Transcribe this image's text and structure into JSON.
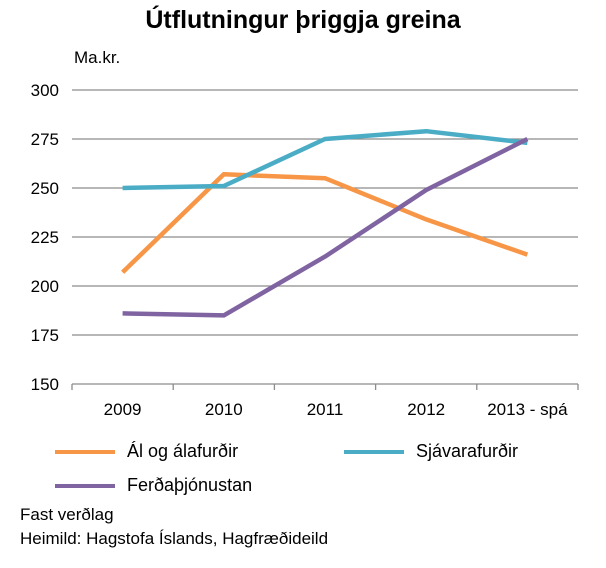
{
  "chart_data": {
    "type": "line",
    "title": "Útflutningur þriggja greina",
    "unit_label": "Ma.kr.",
    "categories": [
      "2009",
      "2010",
      "2011",
      "2012",
      "2013 - spá"
    ],
    "ylim": [
      150,
      300
    ],
    "yticks": [
      "150",
      "175",
      "200",
      "225",
      "250",
      "275",
      "300"
    ],
    "grid": true,
    "legend_position": "bottom",
    "series": [
      {
        "name": "Ál og álafurðir",
        "color": "#F79646",
        "values": [
          207,
          257,
          255,
          234,
          216
        ]
      },
      {
        "name": "Sjávarafurðir",
        "color": "#4BACC6",
        "values": [
          250,
          251,
          275,
          279,
          273
        ]
      },
      {
        "name": "Ferðaþjónustan",
        "color": "#8064A2",
        "values": [
          186,
          185,
          215,
          249,
          275
        ]
      }
    ]
  },
  "notes": {
    "price_basis": "Fast verðlag",
    "source": "Heimild: Hagstofa Íslands, Hagfræðideild"
  }
}
